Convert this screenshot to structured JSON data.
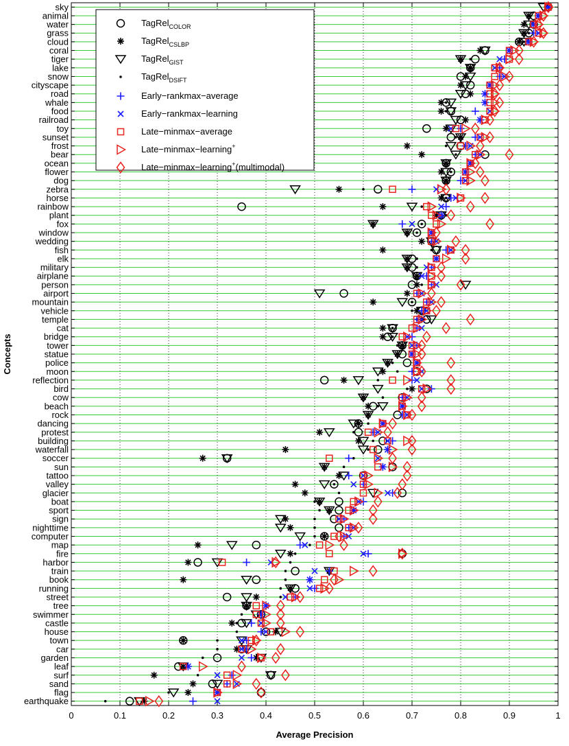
{
  "chart_data": {
    "type": "scatter",
    "title": "",
    "xlabel": "Average Precision",
    "ylabel": "Concepts",
    "xlim": [
      0,
      1
    ],
    "xticks": [
      "0",
      "0.1",
      "0.2",
      "0.3",
      "0.4",
      "0.5",
      "0.6",
      "0.7",
      "0.8",
      "0.9",
      "1"
    ],
    "gridline_color": "#33cc33",
    "grid": "vertical dotted, horizontal green per concept",
    "legend_position": "top-left",
    "categories": [
      "sky",
      "animal",
      "water",
      "grass",
      "cloud",
      "coral",
      "tiger",
      "lake",
      "snow",
      "cityscape",
      "road",
      "whale",
      "food",
      "railroad",
      "toy",
      "sunset",
      "frost",
      "bear",
      "ocean",
      "flower",
      "dog",
      "zebra",
      "horse",
      "rainbow",
      "plant",
      "fox",
      "window",
      "wedding",
      "fish",
      "elk",
      "military",
      "airplane",
      "person",
      "airport",
      "mountain",
      "vehicle",
      "temple",
      "cat",
      "bridge",
      "tower",
      "statue",
      "police",
      "moon",
      "reflection",
      "bird",
      "cow",
      "beach",
      "rock",
      "dancing",
      "protest",
      "building",
      "waterfall",
      "soccer",
      "sun",
      "tattoo",
      "valley",
      "glacier",
      "boat",
      "sport",
      "sign",
      "nighttime",
      "computer",
      "map",
      "fire",
      "harbor",
      "train",
      "book",
      "running",
      "street",
      "tree",
      "swimmer",
      "castle",
      "house",
      "town",
      "car",
      "garden",
      "leaf",
      "surf",
      "sand",
      "flag",
      "earthquake"
    ],
    "series": [
      {
        "name": "TagRel",
        "sub": "COLOR",
        "sup": "",
        "marker": "circle",
        "color": "#000000",
        "values": [
          0.98,
          0.95,
          0.95,
          0.94,
          0.92,
          0.85,
          0.83,
          0.82,
          0.8,
          0.82,
          0.81,
          0.77,
          0.78,
          0.8,
          0.73,
          0.78,
          0.8,
          0.85,
          0.77,
          0.78,
          0.77,
          0.63,
          0.77,
          0.35,
          0.76,
          0.72,
          0.71,
          0.74,
          0.75,
          0.7,
          0.7,
          0.71,
          0.7,
          0.56,
          0.7,
          0.72,
          0.73,
          0.66,
          0.65,
          0.68,
          0.68,
          0.69,
          0.71,
          0.52,
          0.73,
          0.68,
          0.62,
          0.67,
          0.59,
          0.59,
          0.64,
          0.63,
          0.32,
          0.66,
          0.6,
          0.54,
          0.68,
          0.55,
          0.55,
          0.54,
          0.55,
          0.52,
          0.38,
          0.68,
          0.26,
          0.46,
          0.38,
          0.46,
          0.32,
          0.36,
          0.39,
          0.35,
          0.4,
          0.23,
          0.35,
          0.3,
          0.22,
          0.41,
          0.29,
          0.39,
          0.12
        ]
      },
      {
        "name": "TagRel",
        "sub": "CSLBP",
        "sup": "",
        "marker": "asterisk",
        "color": "#000000",
        "values": [
          0.98,
          0.94,
          0.93,
          0.93,
          0.92,
          0.84,
          0.8,
          0.82,
          0.81,
          0.8,
          0.82,
          0.76,
          0.76,
          0.81,
          0.77,
          0.8,
          0.69,
          0.72,
          0.77,
          0.76,
          0.77,
          0.55,
          0.76,
          0.64,
          0.75,
          0.62,
          0.69,
          0.72,
          0.64,
          0.69,
          0.69,
          0.71,
          0.71,
          0.69,
          0.62,
          0.71,
          0.72,
          0.64,
          0.64,
          0.68,
          0.67,
          0.65,
          0.64,
          0.56,
          0.7,
          0.6,
          0.61,
          0.61,
          0.59,
          0.51,
          0.59,
          0.44,
          0.27,
          0.52,
          0.55,
          0.46,
          0.48,
          0.51,
          0.53,
          0.44,
          0.45,
          0.52,
          0.26,
          0.45,
          0.24,
          0.53,
          0.23,
          0.45,
          0.38,
          0.36,
          0.39,
          0.33,
          0.42,
          0.23,
          0.34,
          0.38,
          0.23,
          0.17,
          0.25,
          0.24,
          0.15
        ]
      },
      {
        "name": "TagRel",
        "sub": "GIST",
        "sup": "",
        "marker": "triangle-down",
        "color": "#000000",
        "values": [
          0.97,
          0.94,
          0.94,
          0.93,
          0.93,
          0.85,
          0.8,
          0.82,
          0.82,
          0.81,
          0.8,
          0.78,
          0.78,
          0.79,
          0.78,
          0.8,
          0.78,
          0.79,
          0.77,
          0.77,
          0.77,
          0.46,
          0.77,
          0.7,
          0.76,
          0.62,
          0.69,
          0.74,
          0.75,
          0.69,
          0.69,
          0.71,
          0.81,
          0.51,
          0.68,
          0.72,
          0.74,
          0.66,
          0.66,
          0.68,
          0.67,
          0.65,
          0.63,
          0.59,
          0.63,
          0.6,
          0.64,
          0.61,
          0.58,
          0.53,
          0.6,
          0.6,
          0.32,
          0.52,
          0.56,
          0.52,
          0.62,
          0.51,
          0.53,
          0.43,
          0.43,
          0.47,
          0.33,
          0.43,
          0.3,
          0.53,
          0.36,
          0.45,
          0.36,
          0.36,
          0.38,
          0.36,
          0.43,
          0.35,
          0.36,
          0.39,
          0.23,
          0.41,
          0.3,
          0.21,
          0.14
        ]
      },
      {
        "name": "TagRel",
        "sub": "DSIFT",
        "sup": "",
        "marker": "dot",
        "color": "#000000",
        "values": [
          0.98,
          0.94,
          0.93,
          0.94,
          0.93,
          0.84,
          0.82,
          0.82,
          0.81,
          0.8,
          0.82,
          0.77,
          0.77,
          0.81,
          0.77,
          0.79,
          0.77,
          0.79,
          0.77,
          0.78,
          0.77,
          0.6,
          0.77,
          0.72,
          0.77,
          0.72,
          0.71,
          0.72,
          0.74,
          0.71,
          0.71,
          0.71,
          0.72,
          0.69,
          0.7,
          0.7,
          0.71,
          0.66,
          0.66,
          0.67,
          0.67,
          0.66,
          0.67,
          0.63,
          0.69,
          0.64,
          0.63,
          0.61,
          0.61,
          0.58,
          0.62,
          0.61,
          0.58,
          0.56,
          0.55,
          0.54,
          0.55,
          0.5,
          0.51,
          0.5,
          0.5,
          0.5,
          0.49,
          0.46,
          0.45,
          0.44,
          0.44,
          0.43,
          0.43,
          0.4,
          0.35,
          0.34,
          0.34,
          0.3,
          0.3,
          0.27,
          0.23,
          0.26,
          0.25,
          0.2,
          0.07
        ]
      },
      {
        "name": "Early−rankmax−average",
        "sub": "",
        "sup": "",
        "marker": "plus",
        "color": "#1a1aff",
        "values": [
          0.98,
          0.96,
          0.95,
          0.95,
          0.94,
          0.9,
          0.89,
          0.88,
          0.88,
          0.86,
          0.85,
          0.85,
          0.83,
          0.84,
          0.8,
          0.83,
          0.81,
          0.83,
          0.82,
          0.81,
          0.8,
          0.7,
          0.78,
          0.77,
          0.76,
          0.68,
          0.74,
          0.74,
          0.77,
          0.75,
          0.74,
          0.73,
          0.74,
          0.71,
          0.73,
          0.72,
          0.71,
          0.71,
          0.7,
          0.71,
          0.7,
          0.71,
          0.7,
          0.7,
          0.74,
          0.68,
          0.68,
          0.68,
          0.64,
          0.62,
          0.66,
          0.65,
          0.57,
          0.64,
          0.57,
          0.6,
          0.66,
          0.6,
          0.58,
          0.56,
          0.57,
          0.56,
          0.47,
          0.61,
          0.36,
          0.53,
          0.49,
          0.5,
          0.46,
          0.4,
          0.39,
          0.37,
          0.39,
          0.36,
          0.36,
          0.37,
          0.24,
          0.33,
          0.32,
          0.3,
          0.25
        ]
      },
      {
        "name": "Early−rankmax−learning",
        "sub": "",
        "sup": "",
        "marker": "x",
        "color": "#1a1aff",
        "values": [
          0.98,
          0.96,
          0.95,
          0.96,
          0.94,
          0.9,
          0.88,
          0.87,
          0.89,
          0.86,
          0.85,
          0.85,
          0.86,
          0.84,
          0.78,
          0.84,
          0.82,
          0.84,
          0.82,
          0.81,
          0.81,
          0.75,
          0.79,
          0.76,
          0.76,
          0.7,
          0.74,
          0.75,
          0.78,
          0.75,
          0.73,
          0.72,
          0.75,
          0.72,
          0.74,
          0.73,
          0.72,
          0.72,
          0.69,
          0.7,
          0.7,
          0.71,
          0.72,
          0.71,
          0.72,
          0.69,
          0.68,
          0.69,
          0.64,
          0.63,
          0.65,
          0.65,
          0.63,
          0.64,
          0.6,
          0.58,
          0.65,
          0.59,
          0.58,
          0.55,
          0.58,
          0.57,
          0.48,
          0.6,
          0.41,
          0.5,
          0.49,
          0.49,
          0.44,
          0.4,
          0.39,
          0.39,
          0.4,
          0.35,
          0.35,
          0.35,
          0.24,
          0.3,
          0.34,
          0.3,
          0.3
        ]
      },
      {
        "name": "Late−minmax−average",
        "sub": "",
        "sup": "",
        "marker": "square",
        "color": "#e8231e",
        "values": [
          0.98,
          0.96,
          0.95,
          0.96,
          0.94,
          0.9,
          0.9,
          0.87,
          0.87,
          0.86,
          0.86,
          0.86,
          0.86,
          0.85,
          0.79,
          0.84,
          0.8,
          0.83,
          0.82,
          0.81,
          0.81,
          0.66,
          0.8,
          0.73,
          0.74,
          0.75,
          0.74,
          0.74,
          0.78,
          0.75,
          0.74,
          0.74,
          0.74,
          0.71,
          0.73,
          0.73,
          0.71,
          0.7,
          0.68,
          0.7,
          0.7,
          0.71,
          0.71,
          0.66,
          0.72,
          0.68,
          0.68,
          0.69,
          0.64,
          0.61,
          0.65,
          0.62,
          0.53,
          0.63,
          0.6,
          0.6,
          0.6,
          0.58,
          0.57,
          0.55,
          0.57,
          0.54,
          0.51,
          0.53,
          0.31,
          0.54,
          0.52,
          0.51,
          0.45,
          0.38,
          0.38,
          0.39,
          0.41,
          0.37,
          0.35,
          0.39,
          0.23,
          0.32,
          0.32,
          0.3,
          0.14
        ]
      },
      {
        "name": "Late−minmax−learning",
        "sub": "",
        "sup": "+",
        "marker": "triangle-right",
        "color": "#e8231e",
        "values": [
          0.98,
          0.97,
          0.96,
          0.97,
          0.95,
          0.91,
          0.9,
          0.88,
          0.89,
          0.87,
          0.87,
          0.87,
          0.87,
          0.85,
          0.81,
          0.85,
          0.82,
          0.84,
          0.82,
          0.82,
          0.82,
          0.76,
          0.8,
          0.74,
          0.75,
          0.76,
          0.74,
          0.75,
          0.78,
          0.77,
          0.74,
          0.74,
          0.74,
          0.72,
          0.74,
          0.73,
          0.72,
          0.71,
          0.69,
          0.71,
          0.71,
          0.71,
          0.71,
          0.69,
          0.73,
          0.69,
          0.68,
          0.69,
          0.64,
          0.63,
          0.69,
          0.66,
          0.63,
          0.66,
          0.61,
          0.61,
          0.63,
          0.59,
          0.58,
          0.56,
          0.58,
          0.56,
          0.53,
          0.68,
          0.42,
          0.58,
          0.55,
          0.52,
          0.46,
          0.4,
          0.4,
          0.4,
          0.44,
          0.38,
          0.37,
          0.39,
          0.27,
          0.34,
          0.34,
          0.3,
          0.16
        ]
      },
      {
        "name": "Late−minmax−learning",
        "sub": "",
        "sup": "+",
        "suffix": "(multimodal)",
        "marker": "diamond",
        "color": "#e8231e",
        "values": [
          0.98,
          0.97,
          0.96,
          0.97,
          0.95,
          0.92,
          0.92,
          0.88,
          0.9,
          0.88,
          0.87,
          0.88,
          0.87,
          0.86,
          0.83,
          0.86,
          0.84,
          0.9,
          0.83,
          0.84,
          0.85,
          0.77,
          0.85,
          0.82,
          0.78,
          0.86,
          0.75,
          0.79,
          0.81,
          0.81,
          0.76,
          0.76,
          0.8,
          0.74,
          0.76,
          0.75,
          0.82,
          0.77,
          0.73,
          0.72,
          0.72,
          0.78,
          0.72,
          0.78,
          0.78,
          0.72,
          0.72,
          0.7,
          0.66,
          0.65,
          0.7,
          0.7,
          0.66,
          0.69,
          0.69,
          0.68,
          0.67,
          0.63,
          0.62,
          0.62,
          0.59,
          0.55,
          0.56,
          0.68,
          0.42,
          0.62,
          0.54,
          0.53,
          0.47,
          0.43,
          0.43,
          0.43,
          0.47,
          0.38,
          0.43,
          0.42,
          0.35,
          0.44,
          0.38,
          0.39,
          0.18
        ]
      }
    ]
  }
}
